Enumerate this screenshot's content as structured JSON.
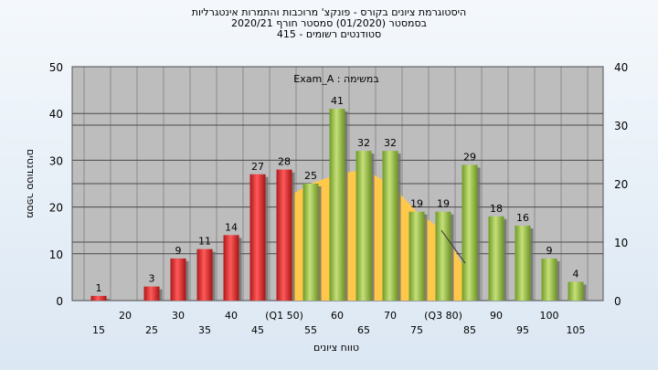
{
  "titles": {
    "line1": "היסטוגרמת ציונים בקורס - פונקצ' מרוכבות והתמרות אינטגרליות",
    "line2": "בסמסטר  (01/2020)  סמסטר חורף  2020/21",
    "line3": "סטודנטים רשומים - 415"
  },
  "colors": {
    "below_median": "#d42a2a",
    "above_median": "#8fba3c",
    "curve": "#ffc84a",
    "plot_bg": "#bdbdbd"
  },
  "chart_data": {
    "type": "bar",
    "title": "היסטוגרמת ציונים בקורס - פונקצ' מרוכבות והתמרות אינטגרליות",
    "xlabel": "טווח ציונים",
    "ylabel": "מספר סטודנטים",
    "annotation": "במשימה : Exam_A",
    "categories": [
      "15",
      "20",
      "25",
      "30",
      "35",
      "40",
      "45",
      "(Q1 50)",
      "55",
      "60",
      "65",
      "70",
      "75",
      "(Q3 80)",
      "85",
      "90",
      "95",
      "100",
      "105"
    ],
    "values": [
      1,
      0,
      3,
      9,
      11,
      14,
      27,
      28,
      25,
      41,
      32,
      32,
      19,
      19,
      29,
      18,
      16,
      9,
      4
    ],
    "value_labels": [
      "1",
      "",
      "3",
      "9",
      "11",
      "14",
      "27",
      "28",
      "25",
      "41",
      "32",
      "32",
      "19",
      "19",
      "29",
      "18",
      "16",
      "9",
      "4"
    ],
    "bar_colors": [
      "red",
      "red",
      "red",
      "red",
      "red",
      "red",
      "red",
      "red",
      "green",
      "green",
      "green",
      "green",
      "green",
      "green",
      "green",
      "green",
      "green",
      "green",
      "green"
    ],
    "ylim": [
      0,
      50
    ],
    "yticks": [
      0,
      10,
      20,
      30,
      40,
      50
    ],
    "y2lim": [
      0,
      40
    ],
    "y2ticks": [
      0,
      10,
      20,
      30,
      40
    ],
    "curve": {
      "x": [
        "(Q1 50)",
        "55",
        "60",
        "65",
        "70",
        "75",
        "(Q3 80)",
        "85"
      ],
      "y": [
        22,
        25,
        27,
        28,
        25,
        19,
        15,
        5
      ]
    },
    "grid": true
  }
}
